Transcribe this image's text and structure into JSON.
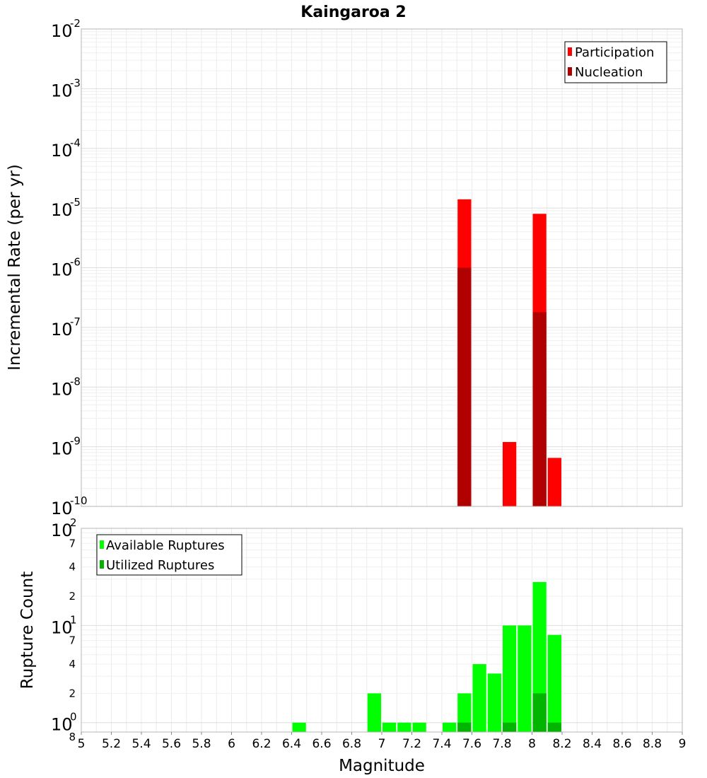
{
  "chart_data": [
    {
      "type": "bar",
      "title": "Kaingaroa 2",
      "xlabel": "",
      "ylabel": "Incremental Rate (per yr)",
      "y_scale": "log",
      "ylim": [
        1e-10,
        0.01
      ],
      "xlim": [
        5,
        9
      ],
      "grid": true,
      "legend_position": "top-right",
      "y_tick_labels": [
        "10",
        "10",
        "10",
        "10",
        "10",
        "10",
        "10",
        "10",
        "10"
      ],
      "y_tick_exponents": [
        "-10",
        "-9",
        "-8",
        "-7",
        "-6",
        "-5",
        "-4",
        "-3",
        "-2"
      ],
      "bar_width": 0.1,
      "series": [
        {
          "name": "Participation",
          "color": "#ff0000",
          "x": [
            7.55,
            7.85,
            8.05,
            8.15
          ],
          "values": [
            1.4e-05,
            1.2e-09,
            8e-06,
            6.5e-10
          ]
        },
        {
          "name": "Nucleation",
          "color": "#b00000",
          "x": [
            7.55,
            8.05
          ],
          "values": [
            1e-06,
            1.8e-07
          ]
        }
      ]
    },
    {
      "type": "bar",
      "title": "",
      "xlabel": "Magnitude",
      "ylabel": "Rupture Count",
      "y_scale": "log",
      "ylim": [
        0.8,
        100
      ],
      "xlim": [
        5,
        9
      ],
      "grid": true,
      "legend_position": "top-left",
      "x_tick_labels": [
        "5",
        "5.2",
        "5.4",
        "5.6",
        "5.8",
        "6",
        "6.2",
        "6.4",
        "6.6",
        "6.8",
        "7",
        "7.2",
        "7.4",
        "7.6",
        "7.8",
        "8",
        "8.2",
        "8.4",
        "8.6",
        "8.8",
        "9"
      ],
      "y_major_labels": [
        "10",
        "10",
        "10"
      ],
      "y_major_exponents": [
        "0",
        "1",
        "2"
      ],
      "y_minor_labels": [
        "8",
        "2",
        "4",
        "7",
        "2",
        "4",
        "7"
      ],
      "bar_width": 0.1,
      "series": [
        {
          "name": "Available Ruptures",
          "color": "#00ff00",
          "x": [
            6.45,
            6.95,
            7.05,
            7.15,
            7.25,
            7.45,
            7.55,
            7.65,
            7.75,
            7.85,
            7.95,
            8.05,
            8.15
          ],
          "values": [
            1,
            2,
            1,
            1,
            1,
            1,
            2,
            4,
            3.2,
            10,
            10,
            28,
            8
          ]
        },
        {
          "name": "Utilized Ruptures",
          "color": "#00b400",
          "x": [
            7.55,
            7.85,
            8.05,
            8.15
          ],
          "values": [
            1,
            1,
            2,
            1
          ]
        }
      ]
    }
  ]
}
